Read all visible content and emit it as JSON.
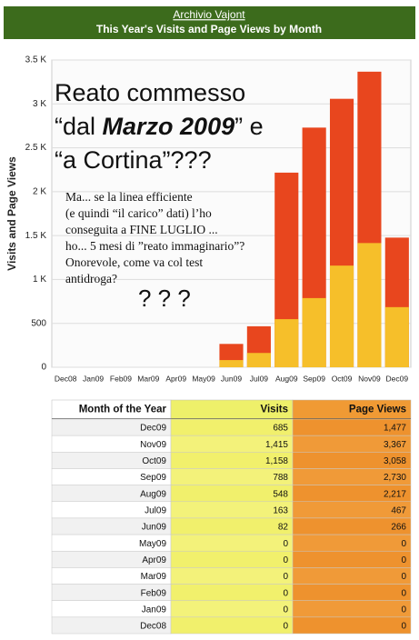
{
  "header": {
    "link": "Archivio Vajont",
    "title": "This Year's Visits and Page Views by Month"
  },
  "chart_data": {
    "type": "bar",
    "y_label": "Visits and Page Views",
    "categories": [
      "Dec08",
      "Jan09",
      "Feb09",
      "Mar09",
      "Apr09",
      "May09",
      "Jun09",
      "Jul09",
      "Aug09",
      "Sep09",
      "Oct09",
      "Nov09",
      "Dec09"
    ],
    "series": [
      {
        "name": "Page Views",
        "color": "#e8461e",
        "values": [
          0,
          0,
          0,
          0,
          0,
          0,
          266,
          467,
          2217,
          2730,
          3058,
          3367,
          1477
        ]
      },
      {
        "name": "Visits",
        "color": "#f6bf2a",
        "values": [
          0,
          0,
          0,
          0,
          0,
          0,
          82,
          163,
          548,
          788,
          1158,
          1415,
          685
        ]
      }
    ],
    "ylim": [
      0,
      3500
    ],
    "yticks": [
      0,
      500,
      {
        "value": 1000,
        "label": "1 K"
      },
      {
        "value": 1500,
        "label": "1.5 K"
      },
      {
        "value": 2000,
        "label": "2 K"
      },
      {
        "value": 2500,
        "label": "2.5 K"
      },
      {
        "value": 3000,
        "label": "3 K"
      },
      {
        "value": 3500,
        "label": "3.5 K"
      }
    ],
    "grid": true
  },
  "headline": {
    "line1": "Reato commesso",
    "line2_before": "“dal ",
    "line2_emphasis": "Marzo 2009",
    "line2_after": "” e",
    "line3": "“a Cortina”???"
  },
  "note": [
    "Ma... se la linea efficiente",
    "(e quindi “il carico” dati) l’ho",
    "conseguita a FINE LUGLIO ...",
    "ho... 5 mesi di ”reato immaginario”?",
    "Onorevole, come va col test",
    "antidroga?"
  ],
  "marks": "? ? ?",
  "table": {
    "columns": [
      "Month of the Year",
      "Visits",
      "Page Views"
    ],
    "rows": [
      [
        "Dec09",
        "685",
        "1,477"
      ],
      [
        "Nov09",
        "1,415",
        "3,367"
      ],
      [
        "Oct09",
        "1,158",
        "3,058"
      ],
      [
        "Sep09",
        "788",
        "2,730"
      ],
      [
        "Aug09",
        "548",
        "2,217"
      ],
      [
        "Jul09",
        "163",
        "467"
      ],
      [
        "Jun09",
        "82",
        "266"
      ],
      [
        "May09",
        "0",
        "0"
      ],
      [
        "Apr09",
        "0",
        "0"
      ],
      [
        "Mar09",
        "0",
        "0"
      ],
      [
        "Feb09",
        "0",
        "0"
      ],
      [
        "Jan09",
        "0",
        "0"
      ],
      [
        "Dec08",
        "0",
        "0"
      ]
    ]
  }
}
